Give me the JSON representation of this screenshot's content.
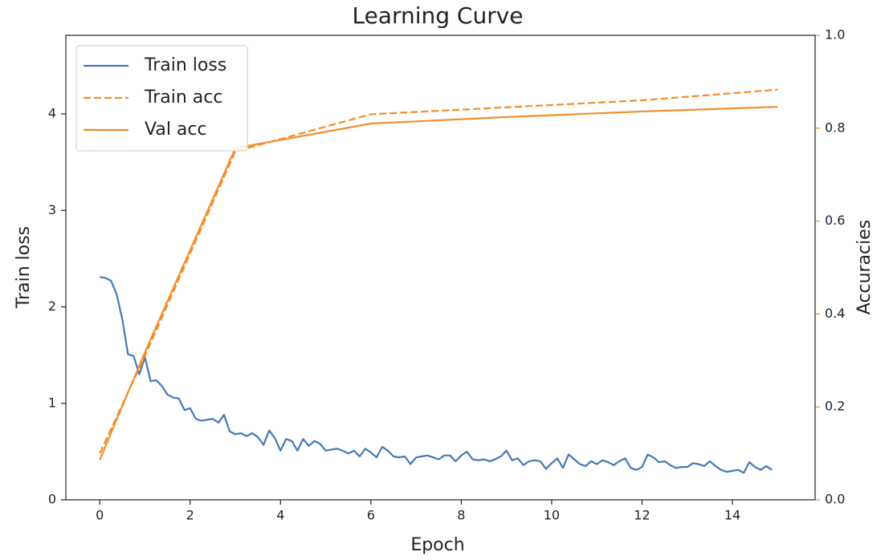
{
  "chart_data": {
    "type": "line",
    "title": "Learning Curve",
    "x_label": "Epoch",
    "y_label": "Train loss",
    "y2_label": "Accuracies",
    "xlim": [
      -0.75,
      15.83
    ],
    "xticks": [
      0,
      2,
      4,
      6,
      8,
      10,
      12,
      14
    ],
    "ylim": [
      0,
      4.815
    ],
    "yticks": [
      0,
      1,
      2,
      3,
      4
    ],
    "y2lim": [
      0,
      1
    ],
    "y2ticks": [
      {
        "value": 0,
        "label": "0.0"
      },
      {
        "value": 0.2,
        "label": "0.2"
      },
      {
        "value": 0.4,
        "label": "0.4"
      },
      {
        "value": 0.6,
        "label": "0.6"
      },
      {
        "value": 0.8,
        "label": "0.8"
      },
      {
        "value": 1,
        "label": "1.0"
      }
    ],
    "y_color": "#4479b4",
    "y2_color": "#f28e2b",
    "legend": "upper left",
    "series": [
      {
        "name": "Train loss",
        "color": "#4479b4",
        "linestyle": "solid",
        "x": [
          0,
          0.125,
          0.25,
          0.375,
          0.5,
          0.625,
          0.75,
          0.875,
          1,
          1.125,
          1.25,
          1.375,
          1.5,
          1.625,
          1.75,
          1.875,
          2,
          2.125,
          2.25,
          2.375,
          2.5,
          2.625,
          2.75,
          2.875,
          3,
          3.125,
          3.25,
          3.375,
          3.5,
          3.625,
          3.75,
          3.875,
          4,
          4.125,
          4.25,
          4.375,
          4.5,
          4.625,
          4.75,
          4.875,
          5,
          5.125,
          5.25,
          5.375,
          5.5,
          5.625,
          5.75,
          5.875,
          6,
          6.125,
          6.25,
          6.375,
          6.5,
          6.625,
          6.75,
          6.875,
          7,
          7.125,
          7.25,
          7.375,
          7.5,
          7.625,
          7.75,
          7.875,
          8,
          8.125,
          8.25,
          8.375,
          8.5,
          8.625,
          8.75,
          8.875,
          9,
          9.125,
          9.25,
          9.375,
          9.5,
          9.625,
          9.75,
          9.875,
          10,
          10.125,
          10.25,
          10.375,
          10.5,
          10.625,
          10.75,
          10.875,
          11,
          11.125,
          11.25,
          11.375,
          11.5,
          11.625,
          11.75,
          11.875,
          12,
          12.125,
          12.25,
          12.375,
          12.5,
          12.625,
          12.75,
          12.875,
          13,
          13.125,
          13.25,
          13.375,
          13.5,
          13.625,
          13.75,
          13.875,
          14,
          14.125,
          14.25,
          14.375,
          14.5,
          14.625,
          14.75,
          14.875
        ],
        "values": [
          2.31,
          2.3,
          2.27,
          2.13,
          1.87,
          1.51,
          1.49,
          1.3,
          1.48,
          1.23,
          1.24,
          1.18,
          1.09,
          1.06,
          1.05,
          0.93,
          0.95,
          0.84,
          0.82,
          0.83,
          0.84,
          0.8,
          0.88,
          0.71,
          0.68,
          0.69,
          0.66,
          0.69,
          0.65,
          0.57,
          0.72,
          0.64,
          0.51,
          0.63,
          0.61,
          0.51,
          0.63,
          0.56,
          0.61,
          0.58,
          0.51,
          0.52,
          0.53,
          0.51,
          0.48,
          0.51,
          0.45,
          0.53,
          0.49,
          0.44,
          0.55,
          0.51,
          0.45,
          0.44,
          0.45,
          0.37,
          0.44,
          0.45,
          0.46,
          0.44,
          0.42,
          0.46,
          0.46,
          0.4,
          0.46,
          0.5,
          0.42,
          0.41,
          0.42,
          0.4,
          0.42,
          0.45,
          0.51,
          0.41,
          0.43,
          0.36,
          0.4,
          0.41,
          0.4,
          0.32,
          0.38,
          0.43,
          0.33,
          0.47,
          0.42,
          0.37,
          0.35,
          0.4,
          0.37,
          0.41,
          0.39,
          0.36,
          0.4,
          0.43,
          0.33,
          0.31,
          0.34,
          0.47,
          0.44,
          0.39,
          0.4,
          0.36,
          0.33,
          0.34,
          0.34,
          0.38,
          0.37,
          0.35,
          0.4,
          0.35,
          0.31,
          0.29,
          0.3,
          0.31,
          0.28,
          0.39,
          0.34,
          0.31,
          0.35,
          0.31
        ]
      },
      {
        "name": "Train acc",
        "color": "#f28e2b",
        "linestyle": "dashed",
        "axis": "y2",
        "x": [
          0,
          1,
          3,
          6,
          9,
          12,
          15
        ],
        "values": [
          0.1,
          0.31,
          0.75,
          0.83,
          0.845,
          0.86,
          0.883
        ]
      },
      {
        "name": "Val acc",
        "color": "#f28e2b",
        "linestyle": "solid",
        "axis": "y2",
        "x": [
          0,
          1,
          3,
          6,
          9,
          12,
          15
        ],
        "values": [
          0.086,
          0.318,
          0.757,
          0.81,
          0.824,
          0.836,
          0.846
        ]
      }
    ]
  }
}
